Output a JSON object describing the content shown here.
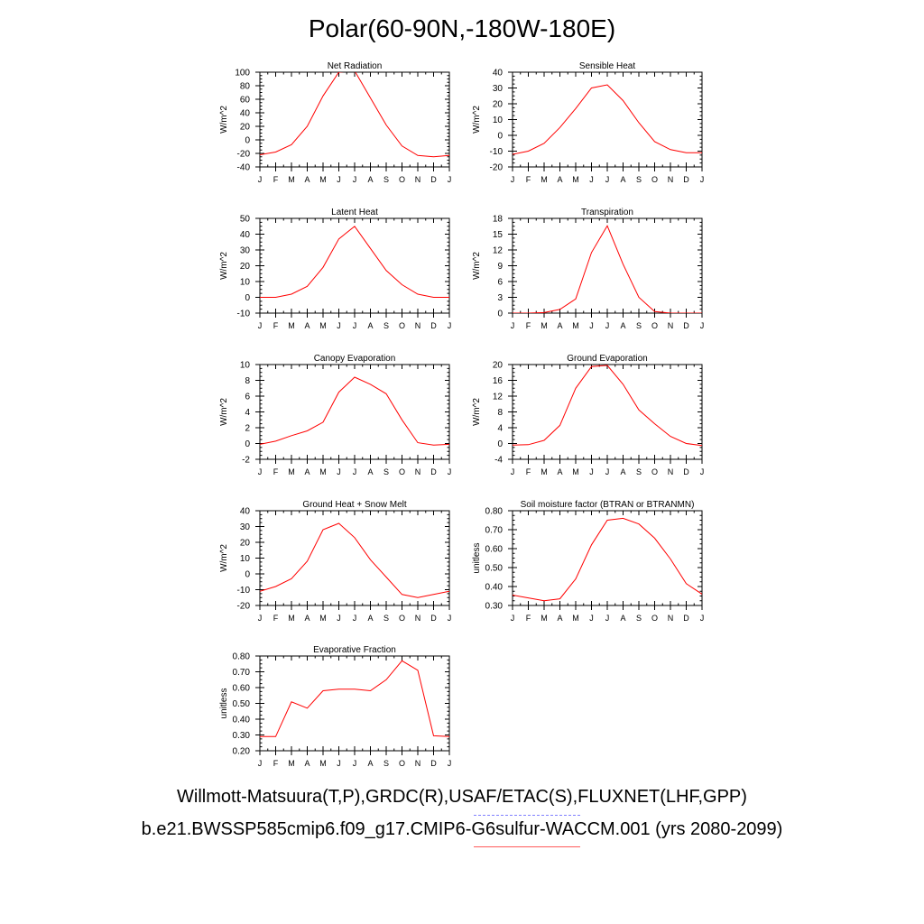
{
  "title": "Polar(60-90N,-180W-180E)",
  "legend": {
    "observations": "Willmott-Matsuura(T,P),GRDC(R),USAF/ETAC(S),FLUXNET(LHF,GPP)",
    "model": "b.e21.BWSSP585cmip6.f09_g17.CMIP6-G6sulfur-WACCM.001 (yrs 2080-2099)",
    "obs_color": "#7f7fff",
    "model_color": "#ff0000"
  },
  "chart_data": [
    {
      "type": "line",
      "title": "Net Radiation",
      "ylabel": "W/m^2",
      "categories": [
        "J",
        "F",
        "M",
        "A",
        "M",
        "J",
        "J",
        "A",
        "S",
        "O",
        "N",
        "D",
        "J"
      ],
      "ylim": [
        -40,
        100
      ],
      "yticks": [
        "-40",
        "-20",
        "0",
        "20",
        "40",
        "60",
        "80",
        "100"
      ],
      "series": [
        {
          "values": [
            -22,
            -18,
            -7,
            20,
            65,
            100,
            102,
            62,
            22,
            -9,
            -23,
            -25,
            -23
          ]
        }
      ]
    },
    {
      "type": "line",
      "title": "Sensible Heat",
      "ylabel": "W/m^2",
      "categories": [
        "J",
        "F",
        "M",
        "A",
        "M",
        "J",
        "J",
        "A",
        "S",
        "O",
        "N",
        "D",
        "J"
      ],
      "ylim": [
        -20,
        40
      ],
      "yticks": [
        "-20",
        "-10",
        "0",
        "10",
        "20",
        "30",
        "40"
      ],
      "series": [
        {
          "values": [
            -12,
            -10,
            -5,
            5,
            17,
            30,
            32,
            22,
            8,
            -4,
            -9,
            -11,
            -11
          ]
        }
      ]
    },
    {
      "type": "line",
      "title": "Latent Heat",
      "ylabel": "W/m^2",
      "categories": [
        "J",
        "F",
        "M",
        "A",
        "M",
        "J",
        "J",
        "A",
        "S",
        "O",
        "N",
        "D",
        "J"
      ],
      "ylim": [
        -10,
        50
      ],
      "yticks": [
        "-10",
        "0",
        "10",
        "20",
        "30",
        "40",
        "50"
      ],
      "series": [
        {
          "values": [
            0,
            0,
            2,
            7,
            19,
            37,
            45,
            31,
            17,
            8,
            2,
            0,
            0
          ]
        }
      ]
    },
    {
      "type": "line",
      "title": "Transpiration",
      "ylabel": "W/m^2",
      "categories": [
        "J",
        "F",
        "M",
        "A",
        "M",
        "J",
        "J",
        "A",
        "S",
        "O",
        "N",
        "D",
        "J"
      ],
      "ylim": [
        0,
        18
      ],
      "yticks": [
        "0",
        "3",
        "6",
        "9",
        "12",
        "15",
        "18"
      ],
      "series": [
        {
          "values": [
            0,
            0,
            0.1,
            0.7,
            2.7,
            11.5,
            16.6,
            9.3,
            3,
            0.3,
            0,
            0,
            0
          ]
        }
      ]
    },
    {
      "type": "line",
      "title": "Canopy Evaporation",
      "ylabel": "W/m^2",
      "categories": [
        "J",
        "F",
        "M",
        "A",
        "M",
        "J",
        "J",
        "A",
        "S",
        "O",
        "N",
        "D",
        "J"
      ],
      "ylim": [
        -2,
        10
      ],
      "yticks": [
        "-2",
        "0",
        "2",
        "4",
        "6",
        "8",
        "10"
      ],
      "series": [
        {
          "values": [
            -0.1,
            0.3,
            1.0,
            1.6,
            2.7,
            6.5,
            8.4,
            7.5,
            6.3,
            3,
            0.1,
            -0.2,
            -0.1
          ]
        }
      ]
    },
    {
      "type": "line",
      "title": "Ground Evaporation",
      "ylabel": "W/m^2",
      "categories": [
        "J",
        "F",
        "M",
        "A",
        "M",
        "J",
        "J",
        "A",
        "S",
        "O",
        "N",
        "D",
        "J"
      ],
      "ylim": [
        -4,
        20
      ],
      "yticks": [
        "-4",
        "0",
        "4",
        "8",
        "12",
        "16",
        "20"
      ],
      "series": [
        {
          "values": [
            -0.4,
            -0.3,
            0.8,
            4.6,
            14,
            19.5,
            19.8,
            15,
            8.5,
            5,
            1.8,
            0,
            -0.5
          ]
        }
      ]
    },
    {
      "type": "line",
      "title": "Ground Heat + Snow Melt",
      "ylabel": "W/m^2",
      "categories": [
        "J",
        "F",
        "M",
        "A",
        "M",
        "J",
        "J",
        "A",
        "S",
        "O",
        "N",
        "D",
        "J"
      ],
      "ylim": [
        -20,
        40
      ],
      "yticks": [
        "-20",
        "-10",
        "0",
        "10",
        "20",
        "30",
        "40"
      ],
      "series": [
        {
          "values": [
            -11,
            -8,
            -3,
            8,
            28,
            32,
            23,
            9,
            -2,
            -13,
            -15,
            -13,
            -11
          ]
        }
      ]
    },
    {
      "type": "line",
      "title": "Soil moisture factor (BTRAN or BTRANMN)",
      "ylabel": "unitless",
      "categories": [
        "J",
        "F",
        "M",
        "A",
        "M",
        "J",
        "J",
        "A",
        "S",
        "O",
        "N",
        "D",
        "J"
      ],
      "ylim": [
        0.3,
        0.8
      ],
      "yticks": [
        "0.30",
        "0.40",
        "0.50",
        "0.60",
        "0.70",
        "0.80"
      ],
      "series": [
        {
          "values": [
            0.355,
            0.34,
            0.325,
            0.335,
            0.44,
            0.62,
            0.75,
            0.76,
            0.73,
            0.655,
            0.545,
            0.415,
            0.36
          ]
        }
      ]
    },
    {
      "type": "line",
      "title": "Evaporative Fraction",
      "ylabel": "unitless",
      "categories": [
        "J",
        "F",
        "M",
        "A",
        "M",
        "J",
        "J",
        "A",
        "S",
        "O",
        "N",
        "D",
        "J"
      ],
      "ylim": [
        0.2,
        0.8
      ],
      "yticks": [
        "0.20",
        "0.30",
        "0.40",
        "0.50",
        "0.60",
        "0.70",
        "0.80"
      ],
      "series": [
        {
          "values": [
            0.29,
            0.29,
            0.51,
            0.47,
            0.58,
            0.59,
            0.59,
            0.58,
            0.65,
            0.77,
            0.71,
            0.295,
            0.29
          ]
        }
      ]
    }
  ]
}
